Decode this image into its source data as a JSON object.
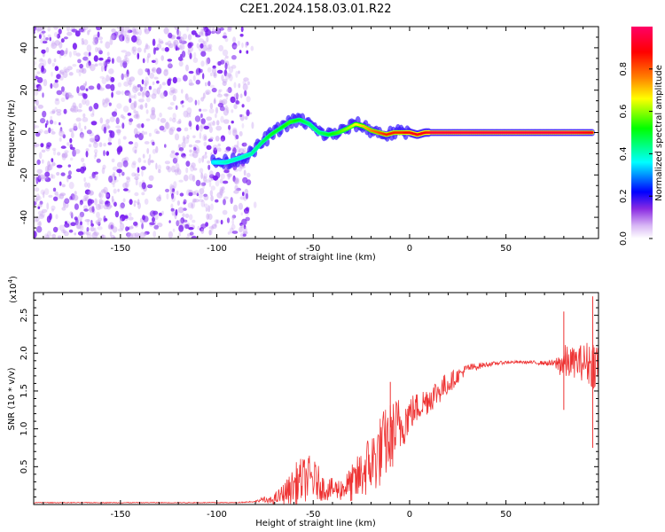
{
  "figure_title": "C2E1.2024.158.03.01.R22",
  "colors": {
    "snr_line": "#ee3333",
    "noise": "#7a1ff0",
    "axis": "#000000"
  },
  "chart_data": [
    {
      "type": "heatmap",
      "title": "C2E1.2024.158.03.01.R22",
      "xlabel": "Height of straight line (km)",
      "ylabel": "Frequency (Hz)",
      "xlim": [
        -195,
        98
      ],
      "ylim": [
        -50,
        50
      ],
      "xticks": [
        -150,
        -100,
        -50,
        0,
        50
      ],
      "xtick_labels": [
        "-150",
        "-100",
        "-50",
        "0",
        "50"
      ],
      "yticks": [
        -40,
        -20,
        0,
        20,
        40
      ],
      "ytick_labels": [
        "-40",
        "-20",
        "0",
        "20",
        "40"
      ],
      "colorbar": {
        "label": "Normalized spectral amplitude",
        "range": [
          0,
          1
        ],
        "ticks": [
          0,
          0.2,
          0.4,
          0.6,
          0.8
        ],
        "tick_labels": [
          "0.0",
          "0.2",
          "0.4",
          "0.6",
          "0.8"
        ],
        "colormap": [
          "#ffffff",
          "#8a2be2",
          "#0000ff",
          "#00ffff",
          "#00ff00",
          "#ffff00",
          "#ff8000",
          "#ff0000",
          "#ff0066"
        ]
      },
      "noise_region_x": [
        -195,
        -83
      ],
      "signal_track": {
        "x": [
          -102,
          -95,
          -88,
          -82,
          -77,
          -72,
          -67,
          -62,
          -57,
          -52,
          -47,
          -42,
          -37,
          -32,
          -28,
          -24,
          -20,
          -16,
          -12,
          -8,
          -4,
          0,
          4,
          8,
          12,
          20,
          40,
          60,
          80,
          95
        ],
        "freq_hz": [
          -14,
          -14,
          -12,
          -10,
          -5,
          -1,
          2,
          5,
          6,
          4,
          0,
          -1,
          0,
          2,
          4,
          3,
          1,
          0,
          -1,
          0,
          0,
          0,
          -1,
          0,
          0,
          0,
          0,
          0,
          0,
          0
        ],
        "amplitude": [
          0.35,
          0.4,
          0.4,
          0.42,
          0.45,
          0.5,
          0.5,
          0.55,
          0.5,
          0.45,
          0.45,
          0.5,
          0.55,
          0.6,
          0.65,
          0.7,
          0.75,
          0.8,
          0.85,
          0.85,
          0.85,
          0.9,
          0.9,
          0.9,
          0.95,
          0.95,
          0.95,
          0.95,
          0.95,
          0.9
        ]
      }
    },
    {
      "type": "line",
      "xlabel": "Height of straight line (km)",
      "ylabel": "SNR (10 * v/v)",
      "scale_label_prefix": "(x10",
      "scale_label_exp": "4",
      "scale_label_suffix": ")",
      "xlim": [
        -195,
        98
      ],
      "ylim": [
        0,
        2.8
      ],
      "xticks": [
        -150,
        -100,
        -50,
        0,
        50
      ],
      "xtick_labels": [
        "-150",
        "-100",
        "-50",
        "0",
        "50"
      ],
      "yticks": [
        0.5,
        1.0,
        1.5,
        2.0,
        2.5
      ],
      "ytick_labels": [
        "0.5",
        "1.0",
        "1.5",
        "2.0",
        "2.5"
      ],
      "series": [
        {
          "name": "SNR",
          "envelope_x": [
            -195,
            -90,
            -80,
            -72,
            -68,
            -62,
            -58,
            -52,
            -48,
            -44,
            -40,
            -36,
            -32,
            -28,
            -22,
            -18,
            -14,
            -10,
            -6,
            -4,
            0,
            5,
            10,
            15,
            20,
            25,
            30,
            40,
            50,
            60,
            70,
            75,
            80,
            85,
            90,
            95,
            98
          ],
          "envelope_mean": [
            0.02,
            0.02,
            0.03,
            0.05,
            0.1,
            0.2,
            0.3,
            0.35,
            0.3,
            0.2,
            0.2,
            0.2,
            0.25,
            0.3,
            0.5,
            0.6,
            0.75,
            0.9,
            1.0,
            1.05,
            1.2,
            1.3,
            1.4,
            1.5,
            1.6,
            1.7,
            1.8,
            1.85,
            1.88,
            1.88,
            1.87,
            1.86,
            1.87,
            1.88,
            1.88,
            1.87,
            1.88
          ],
          "envelope_spread": [
            0.005,
            0.005,
            0.01,
            0.05,
            0.1,
            0.2,
            0.3,
            0.3,
            0.25,
            0.15,
            0.15,
            0.15,
            0.2,
            0.3,
            0.4,
            0.45,
            0.5,
            0.45,
            0.45,
            0.35,
            0.25,
            0.2,
            0.2,
            0.18,
            0.15,
            0.1,
            0.06,
            0.03,
            0.02,
            0.02,
            0.03,
            0.05,
            0.25,
            0.2,
            0.25,
            0.35,
            0.3
          ],
          "peaks": [
            {
              "x": 80,
              "y": 2.55,
              "low": 1.25
            },
            {
              "x": 95,
              "y": 2.75,
              "low": 0.75
            },
            {
              "x": -30,
              "y": 0.33,
              "low": 0.05
            },
            {
              "x": -10,
              "y": 1.62,
              "low": 0.5
            }
          ]
        }
      ]
    }
  ]
}
